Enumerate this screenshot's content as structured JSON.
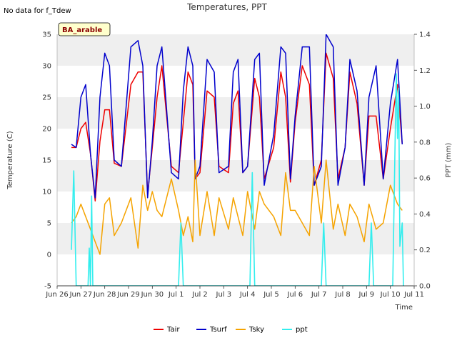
{
  "note": "No data for f_Tdew",
  "badge": "BA_arable",
  "chart_data": {
    "type": "line",
    "title": "Temperatures, PPT",
    "xlabel": "Time",
    "ylabel": "Temperature (C)",
    "y2label": "PPT (mm)",
    "x_ticks": [
      "Jun 26",
      "Jun 27",
      "Jun 28",
      "Jun 29",
      "Jun 30",
      "Jul 1",
      "Jul 2",
      "Jul 3",
      "Jul 4",
      "Jul 5",
      "Jul 6",
      "Jul 7",
      "Jul 8",
      "Jul 9",
      "Jul 10",
      "Jul 11"
    ],
    "xlim": [
      0,
      15
    ],
    "ylim": [
      -5,
      35
    ],
    "y_ticks": [
      "-5",
      "0",
      "5",
      "10",
      "15",
      "20",
      "25",
      "30",
      "35"
    ],
    "y2lim": [
      0,
      1.4
    ],
    "y2_ticks": [
      "0.0",
      "0.2",
      "0.4",
      "0.6",
      "0.8",
      "1.0",
      "1.2",
      "1.4"
    ],
    "grid": "horizontal bands",
    "legend_position": "bottom",
    "colors": {
      "Tair": "#ee0000",
      "Tsurf": "#0000cc",
      "Tsky": "#f5a300",
      "ppt": "#33eeee",
      "band": "#efefef",
      "badge_bg": "#ffffcc"
    },
    "series": [
      {
        "name": "Tair",
        "axis": "left",
        "x": [
          0.6,
          0.8,
          1.0,
          1.2,
          1.4,
          1.6,
          1.8,
          2.0,
          2.2,
          2.4,
          2.7,
          3.1,
          3.4,
          3.6,
          3.8,
          4.0,
          4.2,
          4.4,
          4.8,
          5.1,
          5.3,
          5.5,
          5.7,
          5.8,
          6.0,
          6.3,
          6.6,
          6.8,
          7.2,
          7.4,
          7.6,
          7.8,
          8.0,
          8.3,
          8.5,
          8.7,
          9.1,
          9.4,
          9.6,
          9.8,
          10.0,
          10.3,
          10.6,
          10.8,
          11.1,
          11.3,
          11.6,
          11.8,
          12.1,
          12.3,
          12.6,
          12.9,
          13.1,
          13.4,
          13.7,
          14.0,
          14.3,
          14.5
        ],
        "y": [
          17,
          17,
          20,
          21,
          16,
          8.5,
          18,
          23,
          23,
          14.5,
          14,
          27,
          29,
          29,
          9.5,
          17,
          25,
          30,
          14,
          13,
          21,
          29,
          27,
          12,
          13,
          26,
          25,
          14,
          13,
          24,
          26,
          13,
          14,
          28,
          25,
          12,
          17,
          29,
          25,
          11.5,
          21,
          30,
          27,
          11,
          15,
          32,
          28,
          12,
          17,
          29,
          24,
          11,
          22,
          22,
          12,
          20,
          27,
          17.5
        ]
      },
      {
        "name": "Tsurf",
        "axis": "left",
        "x": [
          0.6,
          0.8,
          1.0,
          1.2,
          1.4,
          1.6,
          1.8,
          2.0,
          2.2,
          2.4,
          2.7,
          3.1,
          3.4,
          3.6,
          3.8,
          4.0,
          4.2,
          4.4,
          4.8,
          5.1,
          5.3,
          5.5,
          5.7,
          5.8,
          6.0,
          6.3,
          6.6,
          6.8,
          7.2,
          7.4,
          7.6,
          7.8,
          8.0,
          8.3,
          8.5,
          8.7,
          9.1,
          9.4,
          9.6,
          9.8,
          10.0,
          10.3,
          10.6,
          10.8,
          11.1,
          11.3,
          11.6,
          11.8,
          12.1,
          12.3,
          12.6,
          12.9,
          13.1,
          13.4,
          13.7,
          14.0,
          14.3,
          14.5
        ],
        "y": [
          17.5,
          17,
          25,
          27,
          16,
          9,
          25,
          32,
          30,
          15,
          14,
          33,
          34,
          30,
          9,
          18,
          30,
          33,
          13,
          12,
          26,
          33,
          30,
          12,
          14,
          31,
          29,
          13,
          14,
          29,
          31,
          13,
          14,
          31,
          32,
          11,
          19,
          33,
          32,
          12,
          22,
          33,
          33,
          11,
          14,
          35,
          33,
          11,
          17,
          31,
          26,
          11,
          25,
          30,
          12,
          24,
          31,
          17.5
        ]
      },
      {
        "name": "Tsky",
        "axis": "left",
        "x": [
          0.6,
          0.8,
          1.0,
          1.2,
          1.4,
          1.6,
          1.8,
          2.0,
          2.2,
          2.4,
          2.7,
          3.1,
          3.4,
          3.6,
          3.8,
          4.0,
          4.2,
          4.4,
          4.8,
          5.1,
          5.3,
          5.5,
          5.7,
          5.8,
          6.0,
          6.3,
          6.6,
          6.8,
          7.2,
          7.4,
          7.6,
          7.8,
          8.0,
          8.3,
          8.5,
          8.7,
          9.1,
          9.4,
          9.6,
          9.8,
          10.0,
          10.3,
          10.6,
          10.8,
          11.1,
          11.3,
          11.6,
          11.8,
          12.1,
          12.3,
          12.6,
          12.9,
          13.1,
          13.4,
          13.7,
          14.0,
          14.3,
          14.5
        ],
        "y": [
          5,
          6,
          8,
          6,
          4,
          2,
          0,
          8,
          9,
          3,
          5,
          9,
          1,
          11,
          7,
          10,
          7,
          6,
          12,
          7,
          3,
          6,
          2,
          15,
          3,
          10,
          3,
          9,
          4,
          9,
          6,
          3,
          10,
          4,
          10,
          8,
          6,
          3,
          13,
          7,
          7,
          5,
          3,
          14,
          5,
          15,
          4,
          8,
          3,
          8,
          6,
          2,
          8,
          4,
          5,
          11,
          8,
          7
        ]
      },
      {
        "name": "ppt",
        "axis": "right",
        "x": [
          0.6,
          0.7,
          0.8,
          0.9,
          1.3,
          1.35,
          1.4,
          1.45,
          1.5,
          1.8,
          2.0,
          5.1,
          5.2,
          5.3,
          8.1,
          8.2,
          8.3,
          11.1,
          11.2,
          11.3,
          13.1,
          13.2,
          13.3,
          14.1,
          14.2,
          14.25,
          14.3,
          14.35,
          14.4,
          14.5,
          14.55
        ],
        "y": [
          0.2,
          0.64,
          0.0,
          0.0,
          0.0,
          0.21,
          0.0,
          0.5,
          0.0,
          0.0,
          0.0,
          0.0,
          0.35,
          0.0,
          0.0,
          0.63,
          0.0,
          0.0,
          0.35,
          0.0,
          0.0,
          0.35,
          0.0,
          0.0,
          0.8,
          1.18,
          0.82,
          1.1,
          0.22,
          0.35,
          0.0
        ]
      }
    ]
  }
}
